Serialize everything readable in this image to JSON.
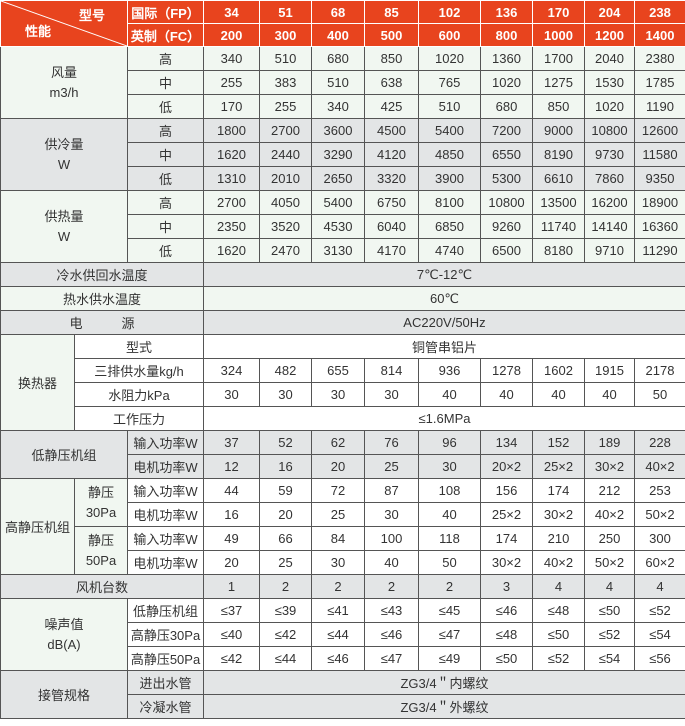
{
  "header": {
    "corner_top": "型号",
    "corner_bottom": "性能",
    "fp_label": "国际（FP）",
    "fc_label": "英制（FC）",
    "fp": [
      "34",
      "51",
      "68",
      "85",
      "102",
      "136",
      "170",
      "204",
      "238"
    ],
    "fc": [
      "200",
      "300",
      "400",
      "500",
      "600",
      "800",
      "1000",
      "1200",
      "1400"
    ]
  },
  "airflow": {
    "label": "风量",
    "unit": "m3/h",
    "rows": [
      {
        "level": "高",
        "values": [
          "340",
          "510",
          "680",
          "850",
          "1020",
          "1360",
          "1700",
          "2040",
          "2380"
        ]
      },
      {
        "level": "中",
        "values": [
          "255",
          "383",
          "510",
          "638",
          "765",
          "1020",
          "1275",
          "1530",
          "1785"
        ]
      },
      {
        "level": "低",
        "values": [
          "170",
          "255",
          "340",
          "425",
          "510",
          "680",
          "850",
          "1020",
          "1190"
        ]
      }
    ]
  },
  "cooling": {
    "label": "供冷量",
    "unit": "W",
    "rows": [
      {
        "level": "高",
        "values": [
          "1800",
          "2700",
          "3600",
          "4500",
          "5400",
          "7200",
          "9000",
          "10800",
          "12600"
        ]
      },
      {
        "level": "中",
        "values": [
          "1620",
          "2440",
          "3290",
          "4120",
          "4850",
          "6550",
          "8190",
          "9730",
          "11580"
        ]
      },
      {
        "level": "低",
        "values": [
          "1310",
          "2010",
          "2650",
          "3320",
          "3900",
          "5300",
          "6610",
          "7860",
          "9350"
        ]
      }
    ]
  },
  "heating": {
    "label": "供热量",
    "unit": "W",
    "rows": [
      {
        "level": "高",
        "values": [
          "2700",
          "4050",
          "5400",
          "6750",
          "8100",
          "10800",
          "13500",
          "16200",
          "18900"
        ]
      },
      {
        "level": "中",
        "values": [
          "2350",
          "3520",
          "4530",
          "6040",
          "6850",
          "9260",
          "11740",
          "14140",
          "16360"
        ]
      },
      {
        "level": "低",
        "values": [
          "1620",
          "2470",
          "3130",
          "4170",
          "4740",
          "6500",
          "8180",
          "9710",
          "11290"
        ]
      }
    ]
  },
  "chilled_water_temp": {
    "label": "冷水供回水温度",
    "value": "7℃-12℃"
  },
  "hot_water_temp": {
    "label": "热水供水温度",
    "value": "60℃"
  },
  "power_supply": {
    "label": "电　　　源",
    "value": "AC220V/50Hz"
  },
  "heat_exchanger": {
    "label": "换热器",
    "type": {
      "label": "型式",
      "value": "铜管串铝片"
    },
    "water_flow": {
      "label": "三排供水量kg/h",
      "values": [
        "324",
        "482",
        "655",
        "814",
        "936",
        "1278",
        "1602",
        "1915",
        "2178"
      ]
    },
    "water_resistance": {
      "label": "水阻力kPa",
      "values": [
        "30",
        "30",
        "30",
        "30",
        "40",
        "40",
        "40",
        "40",
        "50"
      ]
    },
    "working_pressure": {
      "label": "工作压力",
      "value": "≤1.6MPa"
    }
  },
  "low_static": {
    "label": "低静压机组",
    "rows": [
      {
        "label": "输入功率W",
        "values": [
          "37",
          "52",
          "62",
          "76",
          "96",
          "134",
          "152",
          "189",
          "228"
        ]
      },
      {
        "label": "电机功率W",
        "values": [
          "12",
          "16",
          "20",
          "25",
          "30",
          "20×2",
          "25×2",
          "30×2",
          "40×2"
        ]
      }
    ]
  },
  "high_static": {
    "label": "高静压机组",
    "groups": [
      {
        "label": "静压",
        "sub": "30Pa",
        "rows": [
          {
            "label": "输入功率W",
            "values": [
              "44",
              "59",
              "72",
              "87",
              "108",
              "156",
              "174",
              "212",
              "253"
            ]
          },
          {
            "label": "电机功率W",
            "values": [
              "16",
              "20",
              "25",
              "30",
              "40",
              "25×2",
              "30×2",
              "40×2",
              "50×2"
            ]
          }
        ]
      },
      {
        "label": "静压",
        "sub": "50Pa",
        "rows": [
          {
            "label": "输入功率W",
            "values": [
              "49",
              "66",
              "84",
              "100",
              "118",
              "174",
              "210",
              "250",
              "300"
            ]
          },
          {
            "label": "电机功率W",
            "values": [
              "20",
              "25",
              "30",
              "40",
              "50",
              "30×2",
              "40×2",
              "50×2",
              "60×2"
            ]
          }
        ]
      }
    ]
  },
  "fan_count": {
    "label": "风机台数",
    "values": [
      "1",
      "2",
      "2",
      "2",
      "2",
      "3",
      "4",
      "4",
      "4"
    ]
  },
  "noise": {
    "label": "噪声值",
    "unit": "dB(A)",
    "rows": [
      {
        "label": "低静压机组",
        "values": [
          "≤37",
          "≤39",
          "≤41",
          "≤43",
          "≤45",
          "≤46",
          "≤48",
          "≤50",
          "≤52"
        ]
      },
      {
        "label": "高静压30Pa",
        "values": [
          "≤40",
          "≤42",
          "≤44",
          "≤46",
          "≤47",
          "≤48",
          "≤50",
          "≤52",
          "≤54"
        ]
      },
      {
        "label": "高静压50Pa",
        "values": [
          "≤42",
          "≤44",
          "≤46",
          "≤47",
          "≤49",
          "≤50",
          "≤52",
          "≤54",
          "≤56"
        ]
      }
    ]
  },
  "pipe": {
    "label": "接管规格",
    "rows": [
      {
        "label": "进出水管",
        "value": "ZG3/4＂内螺纹"
      },
      {
        "label": "冷凝水管",
        "value": "ZG3/4＂外螺纹"
      }
    ]
  },
  "colors": {
    "header": "#e8441e",
    "band_light": "#f1f7f1",
    "band_grey": "#e3e5e6"
  }
}
